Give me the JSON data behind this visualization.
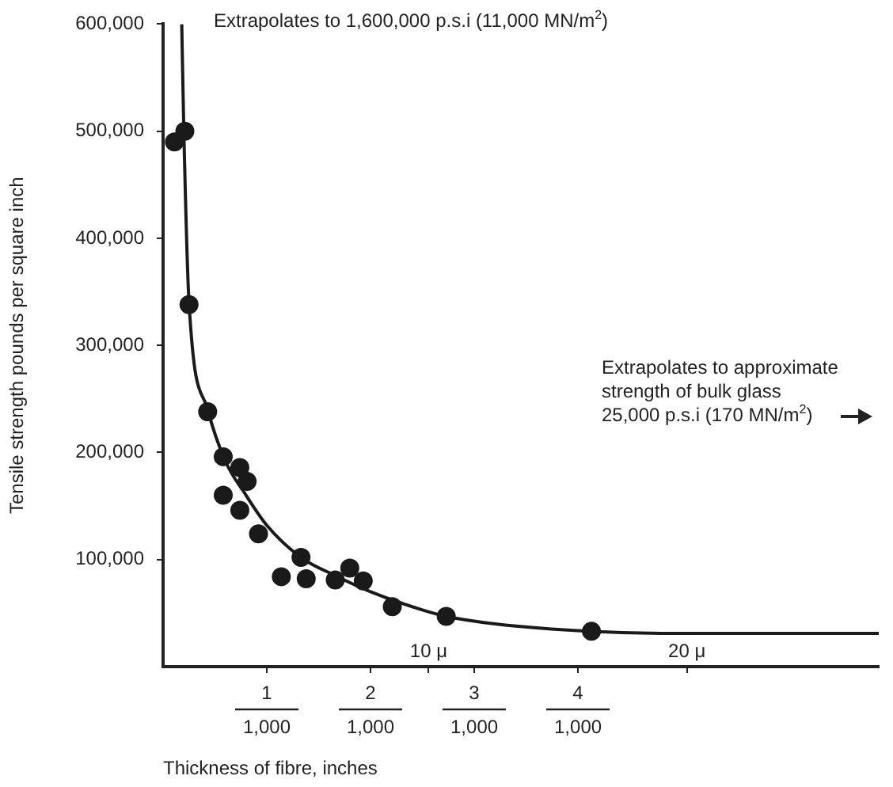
{
  "chart_data": {
    "type": "scatter",
    "xlabel": "Thickness of fibre, inches",
    "ylabel": "Tensile strength pounds per square inch",
    "annotations": [
      "Extrapolates to 1,600,000 p.s.i (11,000 MN/m$^{2}$)",
      "Extrapolates to approximate\nstrength of bulk glass\n25,000 p.s.i (170 MN/m$^{2}$)",
      "10 μ",
      "20 μ",
      "1,000",
      "1,000",
      "1,000",
      "1,000"
    ],
    "series": [
      {
        "type": "scatter",
        "color": "#1a1a1a",
        "marker": "circle",
        "x": [
          0.11,
          0.21,
          0.25,
          0.43,
          0.58,
          0.74,
          0.81,
          0.58,
          0.74,
          0.92,
          1.14,
          1.33,
          1.38,
          1.66,
          1.8,
          1.93,
          2.21,
          2.73,
          4.13
        ],
        "values": [
          490000,
          500000,
          338000,
          238000,
          196000,
          186000,
          173000,
          160000,
          146000,
          124000,
          84000,
          102000,
          82000,
          81000,
          92000,
          80000,
          56000,
          47000,
          33000
        ]
      },
      {
        "type": "line",
        "color": "#1a1a1a",
        "marker": "none",
        "x": [
          0.18,
          0.2,
          0.25,
          0.43,
          0.6,
          0.8,
          1.0,
          1.33,
          1.66,
          2.0,
          2.5,
          2.73,
          3.2,
          4.13,
          5.0,
          6.9
        ],
        "values": [
          600000,
          500000,
          340000,
          240000,
          192000,
          160000,
          132000,
          102000,
          85000,
          70000,
          53000,
          47000,
          40000,
          33000,
          31000,
          31000
        ]
      }
    ],
    "xlim": [
      0,
      6.9
    ],
    "xticks": [
      1,
      2,
      {
        "value": 2.56,
        "label": null
      },
      3,
      4,
      {
        "value": 5.05,
        "label": null
      }
    ],
    "ylim": [
      0,
      600000
    ],
    "yticks": [
      {
        "value": 100000,
        "label": "100,000"
      },
      {
        "value": 200000,
        "label": "200,000"
      },
      {
        "value": 300000,
        "label": "300,000"
      },
      {
        "value": 400000,
        "label": "400,000"
      },
      {
        "value": 500000,
        "label": "500,000"
      },
      {
        "value": 600000,
        "label": "600,000"
      }
    ],
    "grid": false,
    "legend": false,
    "line_style": "solid"
  }
}
